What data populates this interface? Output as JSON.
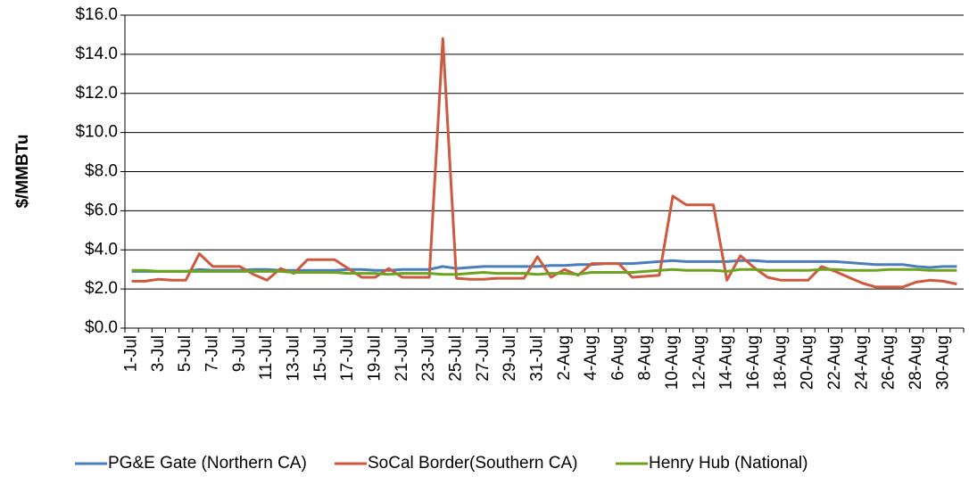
{
  "chart_data": {
    "type": "line",
    "y_label": "$/MMBTu",
    "categories": [
      "1-Jul",
      null,
      "3-Jul",
      null,
      "5-Jul",
      null,
      "7-Jul",
      null,
      "9-Jul",
      null,
      "11-Jul",
      null,
      "13-Jul",
      null,
      "15-Jul",
      null,
      "17-Jul",
      null,
      "19-Jul",
      null,
      "21-Jul",
      null,
      "23-Jul",
      null,
      "25-Jul",
      null,
      "27-Jul",
      null,
      "29-Jul",
      null,
      "31-Jul",
      null,
      "2-Aug",
      null,
      "4-Aug",
      null,
      "6-Aug",
      null,
      "8-Aug",
      null,
      "10-Aug",
      null,
      "12-Aug",
      null,
      "14-Aug",
      null,
      "16-Aug",
      null,
      "18-Aug",
      null,
      "20-Aug",
      null,
      "22-Aug",
      null,
      "24-Aug",
      null,
      "26-Aug",
      null,
      "28-Aug",
      null,
      "30-Aug",
      null
    ],
    "series": [
      {
        "name": "PG&E Gate (Northern CA)",
        "color": "#4a7ebb",
        "values": [
          2.9,
          2.9,
          2.9,
          2.9,
          2.9,
          3.0,
          2.95,
          2.95,
          2.95,
          3.0,
          3.0,
          2.95,
          2.95,
          2.95,
          2.95,
          2.95,
          3.0,
          3.0,
          2.95,
          2.95,
          3.0,
          3.0,
          3.0,
          3.15,
          3.05,
          3.1,
          3.15,
          3.15,
          3.15,
          3.15,
          3.15,
          3.2,
          3.2,
          3.25,
          3.25,
          3.3,
          3.3,
          3.3,
          3.35,
          3.4,
          3.45,
          3.4,
          3.4,
          3.4,
          3.4,
          3.45,
          3.45,
          3.4,
          3.4,
          3.4,
          3.4,
          3.4,
          3.4,
          3.35,
          3.3,
          3.25,
          3.25,
          3.25,
          3.15,
          3.1,
          3.15,
          3.15
        ]
      },
      {
        "name": "SoCal Border(Southern CA)",
        "color": "#cd5a3e",
        "values": [
          2.4,
          2.4,
          2.5,
          2.45,
          2.45,
          3.8,
          3.15,
          3.15,
          3.15,
          2.75,
          2.45,
          3.05,
          2.8,
          3.5,
          3.5,
          3.5,
          3.05,
          2.6,
          2.6,
          3.05,
          2.6,
          2.6,
          2.6,
          14.8,
          2.55,
          2.5,
          2.5,
          2.55,
          2.55,
          2.55,
          3.65,
          2.6,
          3.0,
          2.7,
          3.3,
          3.3,
          3.3,
          2.6,
          2.65,
          2.7,
          6.75,
          6.3,
          6.3,
          6.3,
          2.45,
          3.7,
          3.1,
          2.6,
          2.45,
          2.45,
          2.45,
          3.15,
          2.9,
          2.6,
          2.3,
          2.1,
          2.1,
          2.1,
          2.35,
          2.45,
          2.4,
          2.25
        ]
      },
      {
        "name": "Henry Hub (National)",
        "color": "#6ea31f",
        "values": [
          2.95,
          2.95,
          2.9,
          2.9,
          2.9,
          2.9,
          2.9,
          2.9,
          2.9,
          2.9,
          2.9,
          2.9,
          2.85,
          2.85,
          2.85,
          2.85,
          2.8,
          2.8,
          2.8,
          2.75,
          2.8,
          2.8,
          2.8,
          2.75,
          2.75,
          2.8,
          2.85,
          2.8,
          2.8,
          2.8,
          2.75,
          2.8,
          2.8,
          2.75,
          2.85,
          2.85,
          2.85,
          2.85,
          2.9,
          2.95,
          3.0,
          2.95,
          2.95,
          2.95,
          2.9,
          3.0,
          3.0,
          2.95,
          2.95,
          2.95,
          2.95,
          3.0,
          3.0,
          2.95,
          2.95,
          2.95,
          3.0,
          3.0,
          3.0,
          2.95,
          2.95,
          2.95
        ]
      }
    ],
    "ylim": [
      0,
      16
    ],
    "yticks": [
      {
        "value": 0,
        "label": "$0.0"
      },
      {
        "value": 2,
        "label": "$2.0"
      },
      {
        "value": 4,
        "label": "$4.0"
      },
      {
        "value": 6,
        "label": "$6.0"
      },
      {
        "value": 8,
        "label": "$8.0"
      },
      {
        "value": 10,
        "label": "$10.0"
      },
      {
        "value": 12,
        "label": "$12.0"
      },
      {
        "value": 14,
        "label": "$14.0"
      },
      {
        "value": 16,
        "label": "$16.0"
      }
    ],
    "grid": true,
    "legend": "bottom"
  }
}
